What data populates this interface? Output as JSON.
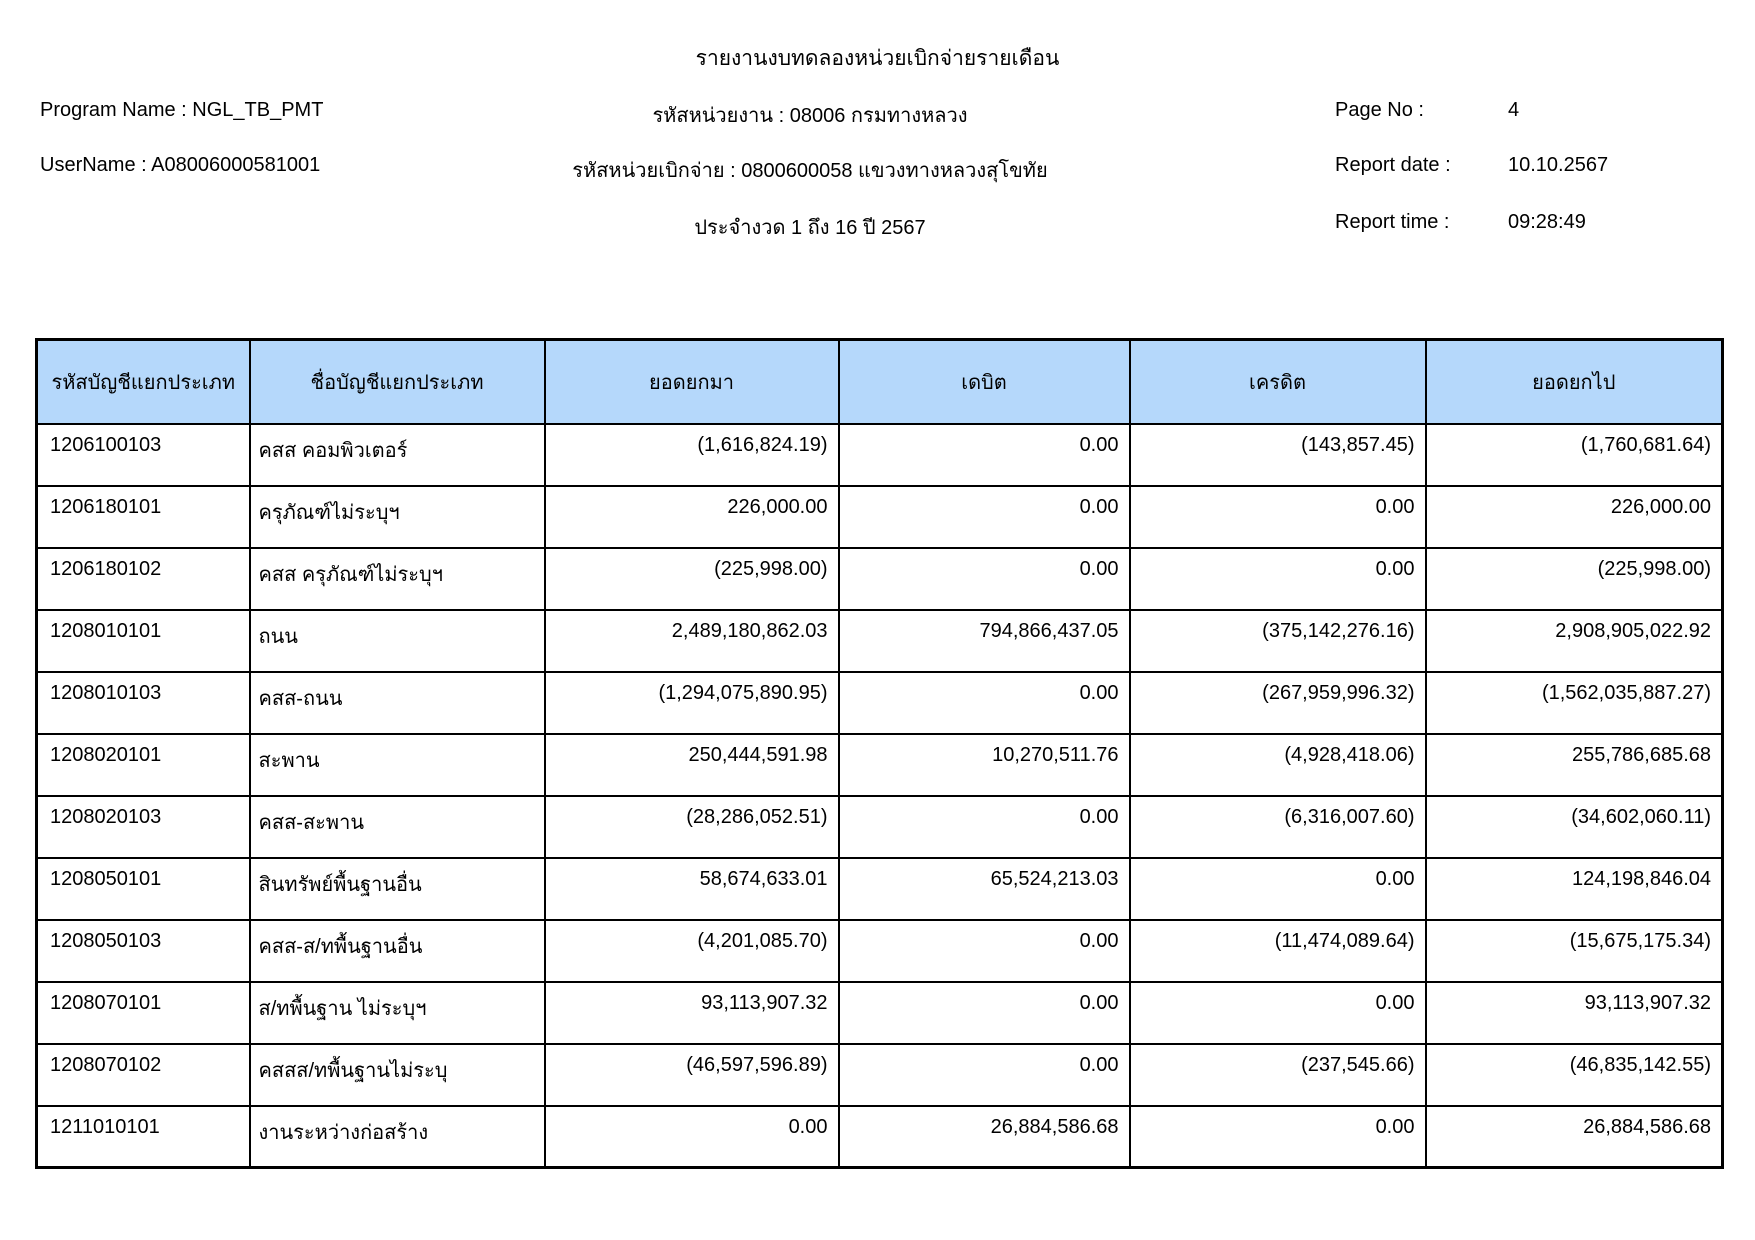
{
  "header": {
    "title": "รายงานงบทดลองหน่วยเบิกจ่ายรายเดือน",
    "program_name_label": "Program Name :",
    "program_name_value": "NGL_TB_PMT",
    "username_label": "UserName :",
    "username_value": "A08006000581001",
    "agency_line": "รหัสหน่วยงาน : 08006 กรมทางหลวง",
    "unit_line": "รหัสหน่วยเบิกจ่าย : 0800600058 แขวงทางหลวงสุโขทัย",
    "period_line": "ประจำงวด 1 ถึง 16 ปี 2567",
    "page_no_label": "Page No :",
    "page_no_value": "4",
    "report_date_label": "Report date :",
    "report_date_value": "10.10.2567",
    "report_time_label": "Report time :",
    "report_time_value": "09:28:49"
  },
  "table": {
    "headers": [
      "รหัสบัญชีแยกประเภท",
      "ชื่อบัญชีแยกประเภท",
      "ยอดยกมา",
      "เดบิต",
      "เครดิต",
      "ยอดยกไป"
    ],
    "rows": [
      [
        "1206100103",
        "คสส คอมพิวเตอร์",
        "(1,616,824.19)",
        "0.00",
        "(143,857.45)",
        "(1,760,681.64)"
      ],
      [
        "1206180101",
        "ครุภัณฑ์ไม่ระบุฯ",
        "226,000.00",
        "0.00",
        "0.00",
        "226,000.00"
      ],
      [
        "1206180102",
        "คสส ครุภัณฑ์ไม่ระบุฯ",
        "(225,998.00)",
        "0.00",
        "0.00",
        "(225,998.00)"
      ],
      [
        "1208010101",
        "ถนน",
        "2,489,180,862.03",
        "794,866,437.05",
        "(375,142,276.16)",
        "2,908,905,022.92"
      ],
      [
        "1208010103",
        "คสส-ถนน",
        "(1,294,075,890.95)",
        "0.00",
        "(267,959,996.32)",
        "(1,562,035,887.27)"
      ],
      [
        "1208020101",
        "สะพาน",
        "250,444,591.98",
        "10,270,511.76",
        "(4,928,418.06)",
        "255,786,685.68"
      ],
      [
        "1208020103",
        "คสส-สะพาน",
        "(28,286,052.51)",
        "0.00",
        "(6,316,007.60)",
        "(34,602,060.11)"
      ],
      [
        "1208050101",
        "สินทรัพย์พื้นฐานอื่น",
        "58,674,633.01",
        "65,524,213.03",
        "0.00",
        "124,198,846.04"
      ],
      [
        "1208050103",
        "คสส-ส/ทพื้นฐานอื่น",
        "(4,201,085.70)",
        "0.00",
        "(11,474,089.64)",
        "(15,675,175.34)"
      ],
      [
        "1208070101",
        "ส/ทพื้นฐาน ไม่ระบุฯ",
        "93,113,907.32",
        "0.00",
        "0.00",
        "93,113,907.32"
      ],
      [
        "1208070102",
        "คสสส/ทพื้นฐานไม่ระบุ",
        "(46,597,596.89)",
        "0.00",
        "(237,545.66)",
        "(46,835,142.55)"
      ],
      [
        "1211010101",
        "งานระหว่างก่อสร้าง",
        "0.00",
        "26,884,586.68",
        "0.00",
        "26,884,586.68"
      ]
    ]
  },
  "colors": {
    "table_header_bg": "#B5D8FB",
    "border": "#000000",
    "text": "#000000",
    "background": "#FFFFFF"
  }
}
